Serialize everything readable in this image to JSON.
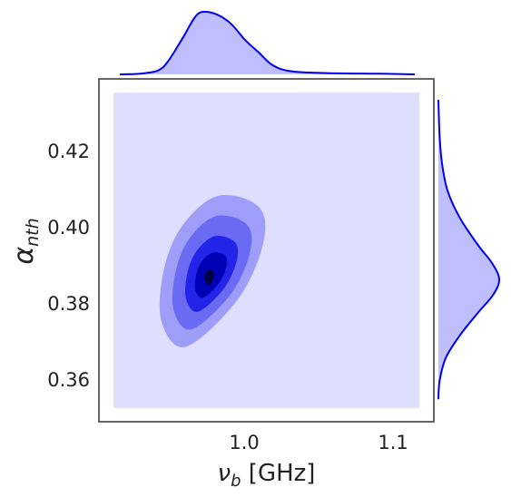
{
  "chart_data": {
    "type": "jointkde",
    "xlim": [
      0.9024,
      1.1274
    ],
    "ylim": [
      0.3493,
      0.4393
    ],
    "xticks": [
      {
        "value": 1.0,
        "label": "1.0"
      },
      1.1
    ],
    "yticks": [
      0.36,
      0.38,
      {
        "value": 0.4,
        "label": "0.40"
      },
      0.42
    ],
    "xlabel": {
      "base": "ν",
      "sub": "b",
      "rest": " [GHz]"
    },
    "ylabel": {
      "base": "α",
      "sub": "nth"
    },
    "grid_extent": {
      "color": "#dedeff",
      "x": [
        0.9122,
        1.1177
      ],
      "y": [
        0.3529,
        0.4357
      ]
    },
    "contours": [
      {
        "color": "#9e9ef9",
        "x": [
          0.9445,
          0.9457,
          0.9579,
          0.9823,
          1.0098,
          1.0128,
          0.9957,
          0.961
        ],
        "y": [
          0.3755,
          0.3886,
          0.4005,
          0.4086,
          0.4057,
          0.3962,
          0.3814,
          0.369
        ]
      },
      {
        "color": "#6a6af3",
        "x": [
          0.9527,
          0.9537,
          0.9628,
          0.9811,
          1.0017,
          1.004,
          0.9912,
          0.9649
        ],
        "y": [
          0.3785,
          0.3883,
          0.3972,
          0.4033,
          0.4011,
          0.394,
          0.3829,
          0.3736
        ]
      },
      {
        "color": "#2424e8",
        "x": [
          0.961,
          0.9616,
          0.9677,
          0.9799,
          0.9936,
          0.9951,
          0.9866,
          0.9692
        ],
        "y": [
          0.3814,
          0.388,
          0.3939,
          0.398,
          0.3965,
          0.3918,
          0.3844,
          0.3782
        ]
      },
      {
        "color": "#0000b4",
        "x": [
          0.9672,
          0.9677,
          0.9713,
          0.9789,
          0.9872,
          0.988,
          0.9829,
          0.9725
        ],
        "y": [
          0.3838,
          0.3877,
          0.3913,
          0.3937,
          0.3929,
          0.39,
          0.3856,
          0.3819
        ]
      },
      {
        "color": "#00003c",
        "x": [
          0.9732,
          0.9762,
          0.9799,
          0.9768
        ],
        "y": [
          0.3871,
          0.3893,
          0.3881,
          0.3852
        ]
      }
    ],
    "marginal_x": {
      "color": "#0000ee",
      "fill": "#bfbfff",
      "x": [
        0.9165,
        0.9335,
        0.9457,
        0.9579,
        0.9671,
        0.9732,
        0.9823,
        0.9915,
        1.0006,
        1.0098,
        1.0189,
        1.0311,
        1.0555,
        1.0921,
        1.1146
      ],
      "density": [
        0,
        0.02,
        0.12,
        0.55,
        0.92,
        1.0,
        0.95,
        0.8,
        0.55,
        0.35,
        0.15,
        0.05,
        0.02,
        0.01,
        0
      ]
    },
    "marginal_y": {
      "color": "#0000ee",
      "fill": "#bfbfff",
      "y": [
        0.4338,
        0.4243,
        0.4171,
        0.41,
        0.4029,
        0.3957,
        0.391,
        0.3867,
        0.3826,
        0.3779,
        0.3719,
        0.366,
        0.36,
        0.3552
      ],
      "density": [
        0,
        0.02,
        0.06,
        0.15,
        0.35,
        0.65,
        0.88,
        1.0,
        0.9,
        0.65,
        0.35,
        0.12,
        0.02,
        0
      ]
    }
  }
}
